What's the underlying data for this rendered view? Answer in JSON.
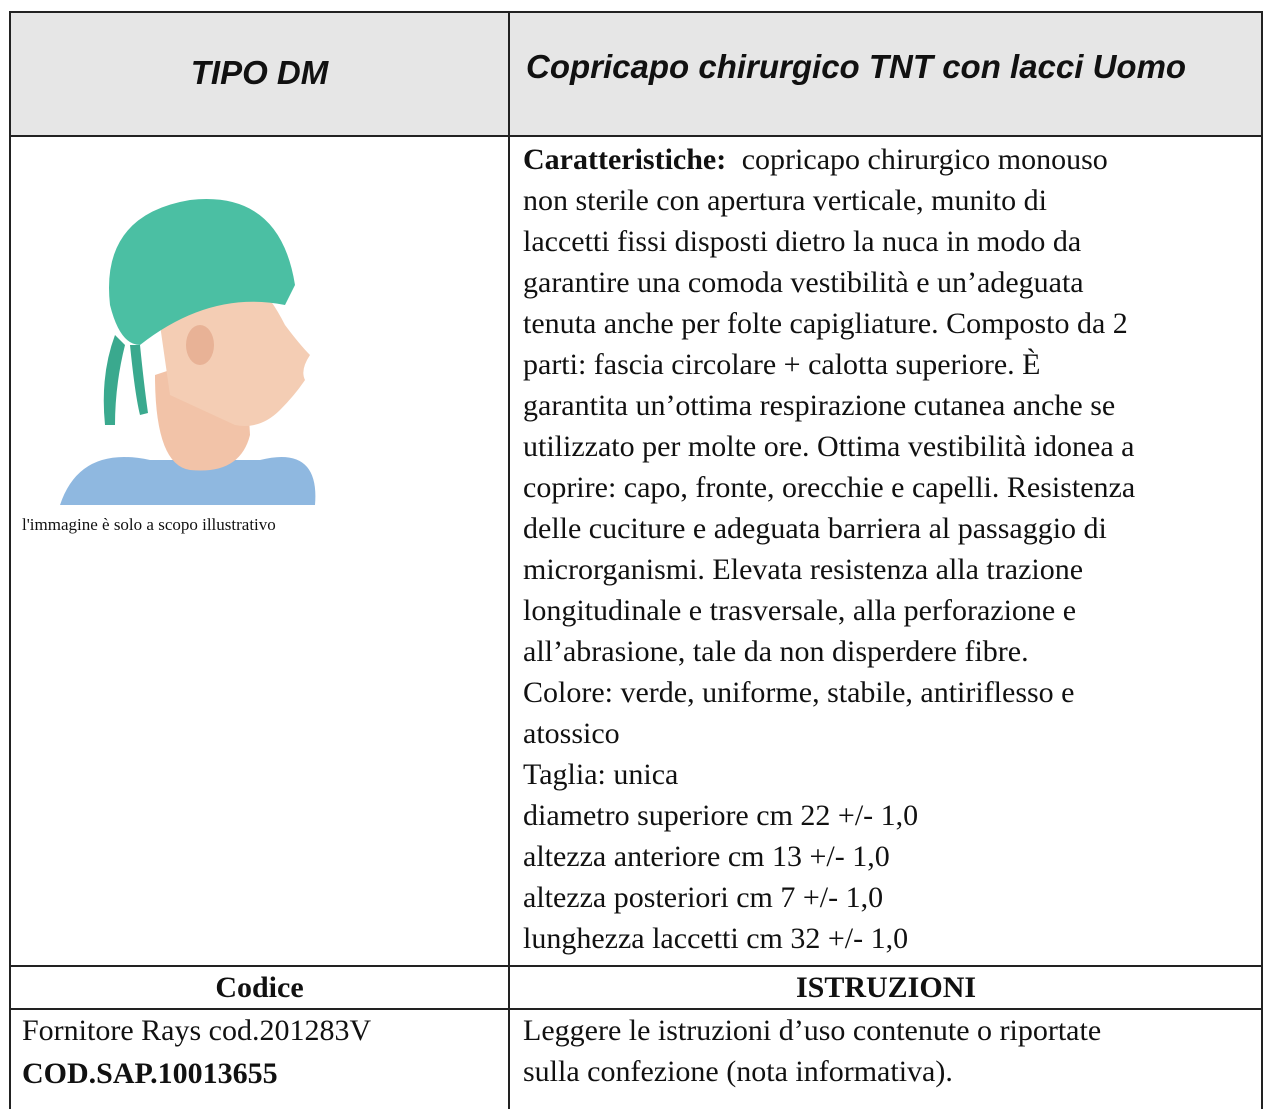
{
  "header": {
    "type_label": "TIPO DM",
    "product": "Copricapo chirurgico TNT con lacci Uomo"
  },
  "image": {
    "caption": "l'immagine è solo a scopo illustrativo"
  },
  "description": {
    "label": "Caratteristiche:",
    "lines": [
      "copricapo chirurgico monouso",
      "non sterile con apertura verticale, munito di",
      "laccetti fissi disposti dietro la nuca in modo da",
      "garantire una comoda vestibilità e un’adeguata",
      "tenuta anche per folte capigliature. Composto da 2",
      "parti: fascia circolare + calotta superiore. È",
      "garantita un’ottima respirazione cutanea anche se",
      "utilizzato per molte ore. Ottima vestibilità idonea a",
      "coprire: capo, fronte, orecchie e capelli. Resistenza",
      "delle cuciture e adeguata barriera al passaggio di",
      "microrganismi. Elevata resistenza alla trazione",
      "longitudinale e trasversale, alla perforazione e",
      "all’abrasione, tale da non disperdere fibre.",
      "Colore: verde, uniforme, stabile, antiriflesso e",
      "atossico",
      "Taglia: unica",
      "diametro superiore cm 22 +/- 1,0",
      "altezza anteriore cm 13 +/- 1,0",
      "altezza posteriori cm 7 +/- 1,0",
      "lunghezza laccetti cm 32 +/- 1,0"
    ]
  },
  "footer": {
    "code_header": "Codice",
    "instructions_header": "ISTRUZIONI",
    "supplier": "Fornitore Rays cod.201283V",
    "sap_code": "COD.SAP.10013655",
    "instructions_lines": [
      "Leggere le istruzioni d’uso contenute o riportate",
      "sulla confezione (nota informativa)."
    ]
  }
}
